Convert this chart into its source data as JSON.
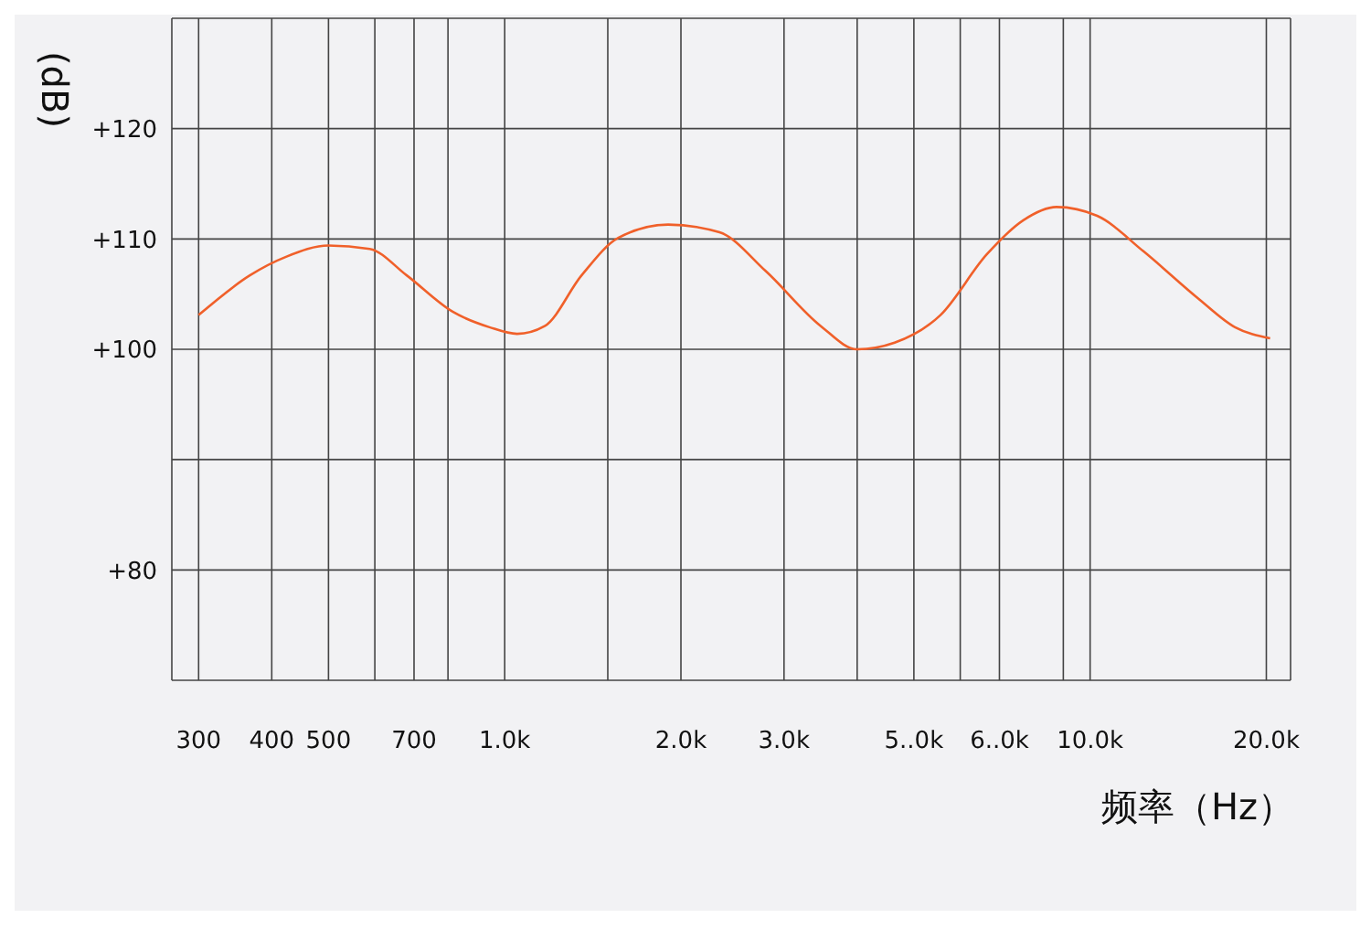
{
  "chart_data": {
    "type": "line",
    "xlabel": "频率（Hz）",
    "ylabel": "(dB)",
    "x": [
      300,
      367,
      424,
      500,
      588,
      680,
      815,
      942,
      1050,
      1170,
      1353,
      1563,
      1902,
      2328,
      2790,
      3468,
      4000,
      4635,
      5550,
      6660,
      7690,
      8760,
      10280,
      12320,
      15300,
      17680,
      20300
    ],
    "series": [
      {
        "color": "#f0602a",
        "values": [
          103.1,
          106.7,
          108.4,
          109.4,
          109.1,
          106.7,
          103.4,
          102,
          101.4,
          102.1,
          106.7,
          110.1,
          111.3,
          110.6,
          107.1,
          102.1,
          100,
          100.6,
          103.1,
          108.6,
          111.7,
          112.9,
          112.1,
          108.9,
          104.6,
          102,
          101
        ]
      }
    ],
    "log": "x",
    "xlim": [
      270,
      22000
    ],
    "xticks": [
      300,
      400,
      500,
      {
        "value": 600,
        "label": null
      },
      700,
      {
        "value": 800,
        "label": null
      },
      {
        "value": 1000,
        "label": "1.0k"
      },
      {
        "value": 1500,
        "label": null
      },
      {
        "value": 2000,
        "label": "2.0k"
      },
      {
        "value": 3000,
        "label": "3.0k"
      },
      {
        "value": 4000,
        "label": null
      },
      {
        "value": 5000,
        "label": "5..0k"
      },
      {
        "value": 6000,
        "label": null
      },
      {
        "value": 7000,
        "label": "6..0k"
      },
      {
        "value": 9000,
        "label": null
      },
      {
        "value": 10000,
        "label": "10.0k"
      },
      {
        "value": 20000,
        "label": "20.0k"
      }
    ],
    "ylim": [
      70,
      130
    ],
    "yticks": [
      {
        "value": 120,
        "label": "+120"
      },
      {
        "value": 110,
        "label": "+110"
      },
      {
        "value": 100,
        "label": "+100"
      },
      {
        "value": 90,
        "label": null
      },
      {
        "value": 80,
        "label": "+80"
      },
      {
        "value": 70,
        "label": null
      }
    ],
    "grid": true,
    "marker": "none",
    "line_style": "solid"
  }
}
